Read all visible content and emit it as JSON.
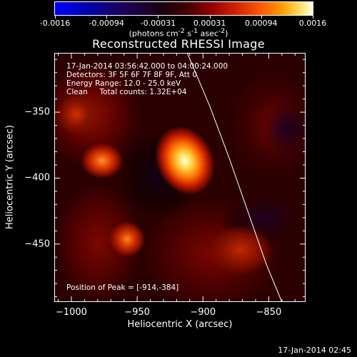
{
  "colorbar": {
    "ticks": [
      "-0.0016",
      "-0.00094",
      "-0.00031",
      "0.00031",
      "0.00094",
      "0.0016"
    ],
    "units_html": "(photons cm<sup>-2</sup> s<sup>-1</sup> asec<sup>-2</sup>)"
  },
  "title": "Reconstructed RHESSI Image",
  "info": {
    "line1": "17-Jan-2014 03:56:42.000 to 04:00:24.000",
    "line2": "Detectors: 3F 5F 6F 7F 8F 9F, Att 0",
    "line3": "Energy Range: 12.0 - 25.0 keV",
    "line4": "Clean     Total counts: 1.32E+04",
    "peak": "Position of Peak = [-914,-384]"
  },
  "chart_data": {
    "type": "heatmap",
    "title": "Reconstructed RHESSI Image",
    "xlabel": "Heliocentric X (arcsec)",
    "ylabel": "Heliocentric Y (arcsec)",
    "xlim": [
      -1013,
      -822
    ],
    "ylim": [
      -494,
      -305
    ],
    "xticks": [
      -1000,
      -950,
      -900,
      -850
    ],
    "xtick_labels": [
      "−1000",
      "−950",
      "−900",
      "−850"
    ],
    "yticks": [
      -350,
      -400,
      -450
    ],
    "ytick_labels": [
      "−350",
      "−400",
      "−450"
    ],
    "colorbar_range": [
      -0.0016,
      0.0016
    ],
    "peak": [
      -914,
      -384
    ],
    "sources": [
      {
        "x": -914,
        "y": -384,
        "level": "peak"
      },
      {
        "x": -975,
        "y": -386,
        "level": "moderate"
      },
      {
        "x": -959,
        "y": -441,
        "level": "moderate"
      },
      {
        "x": -1000,
        "y": -344,
        "level": "weak"
      },
      {
        "x": -875,
        "y": -420,
        "level": "weak"
      }
    ],
    "limb_curve": [
      [
        -912,
        -305
      ],
      [
        -895,
        -345
      ],
      [
        -880,
        -385
      ],
      [
        -866,
        -425
      ],
      [
        -852,
        -465
      ],
      [
        -840,
        -494
      ]
    ]
  },
  "timestamp": "17-Jan-2014 02:45"
}
